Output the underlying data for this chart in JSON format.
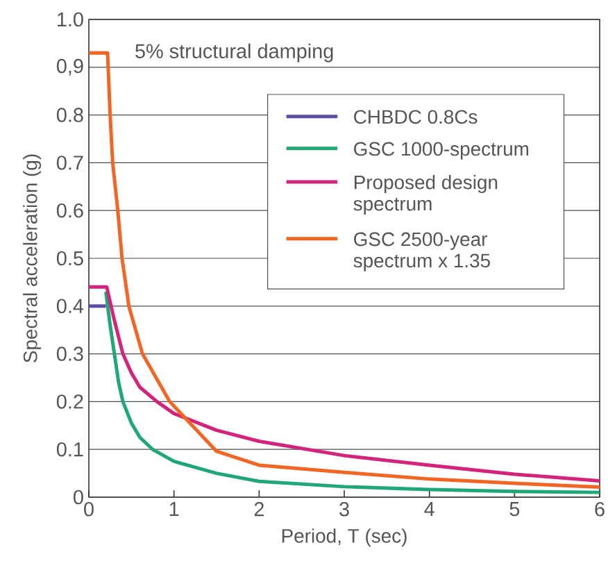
{
  "chart_data": {
    "type": "line",
    "xlabel": "Period, T (sec)",
    "ylabel": "Spectral acceleration (g)",
    "annotations": [
      "5% structural damping"
    ],
    "xlim": [
      0,
      6
    ],
    "ylim": [
      0,
      1
    ],
    "xticks": [
      0,
      1,
      2,
      3,
      4,
      5,
      6
    ],
    "yticks": [
      0,
      0.1,
      0.2,
      0.3,
      0.4,
      0.5,
      0.6,
      0.7,
      0.8,
      {
        "value": 0.9,
        "label": "0,9"
      },
      {
        "value": 1,
        "label": "1.0"
      }
    ],
    "grid": "y",
    "legend": "top right",
    "marker": "none",
    "line_style": "solid",
    "series": [
      {
        "name": "CHBDC 0.8Cs",
        "color": "#5b4fa8",
        "x": [
          0,
          0.2
        ],
        "values": [
          0.4,
          0.4
        ]
      },
      {
        "name": "GSC 1000-spectrum",
        "color": "#1fa775",
        "x": [
          0.2,
          0.25,
          0.3,
          0.35,
          0.4,
          0.5,
          0.6,
          0.75,
          1,
          1.5,
          2,
          3,
          4,
          5,
          6
        ],
        "values": [
          0.43,
          0.36,
          0.3,
          0.24,
          0.2,
          0.155,
          0.125,
          0.1,
          0.075,
          0.05,
          0.033,
          0.022,
          0.016,
          0.012,
          0.01
        ]
      },
      {
        "name": "Proposed design spectrum",
        "color": "#d4237a",
        "x": [
          0,
          0.21,
          0.3,
          0.4,
          0.5,
          0.6,
          0.8,
          1,
          1.5,
          2,
          3,
          4,
          5,
          6
        ],
        "values": [
          0.44,
          0.44,
          0.37,
          0.3,
          0.26,
          0.23,
          0.2,
          0.175,
          0.14,
          0.117,
          0.087,
          0.067,
          0.048,
          0.034
        ]
      },
      {
        "name": "GSC 2500-year spectrum x 1.35",
        "color": "#f26522",
        "x": [
          0,
          0.22,
          0.25,
          0.28,
          0.34,
          0.39,
          0.47,
          0.63,
          0.95,
          1.5,
          2,
          3,
          4,
          5,
          6
        ],
        "values": [
          0.93,
          0.93,
          0.8,
          0.7,
          0.6,
          0.5,
          0.4,
          0.3,
          0.2,
          0.096,
          0.067,
          0.052,
          0.038,
          0.029,
          0.021
        ]
      }
    ]
  }
}
